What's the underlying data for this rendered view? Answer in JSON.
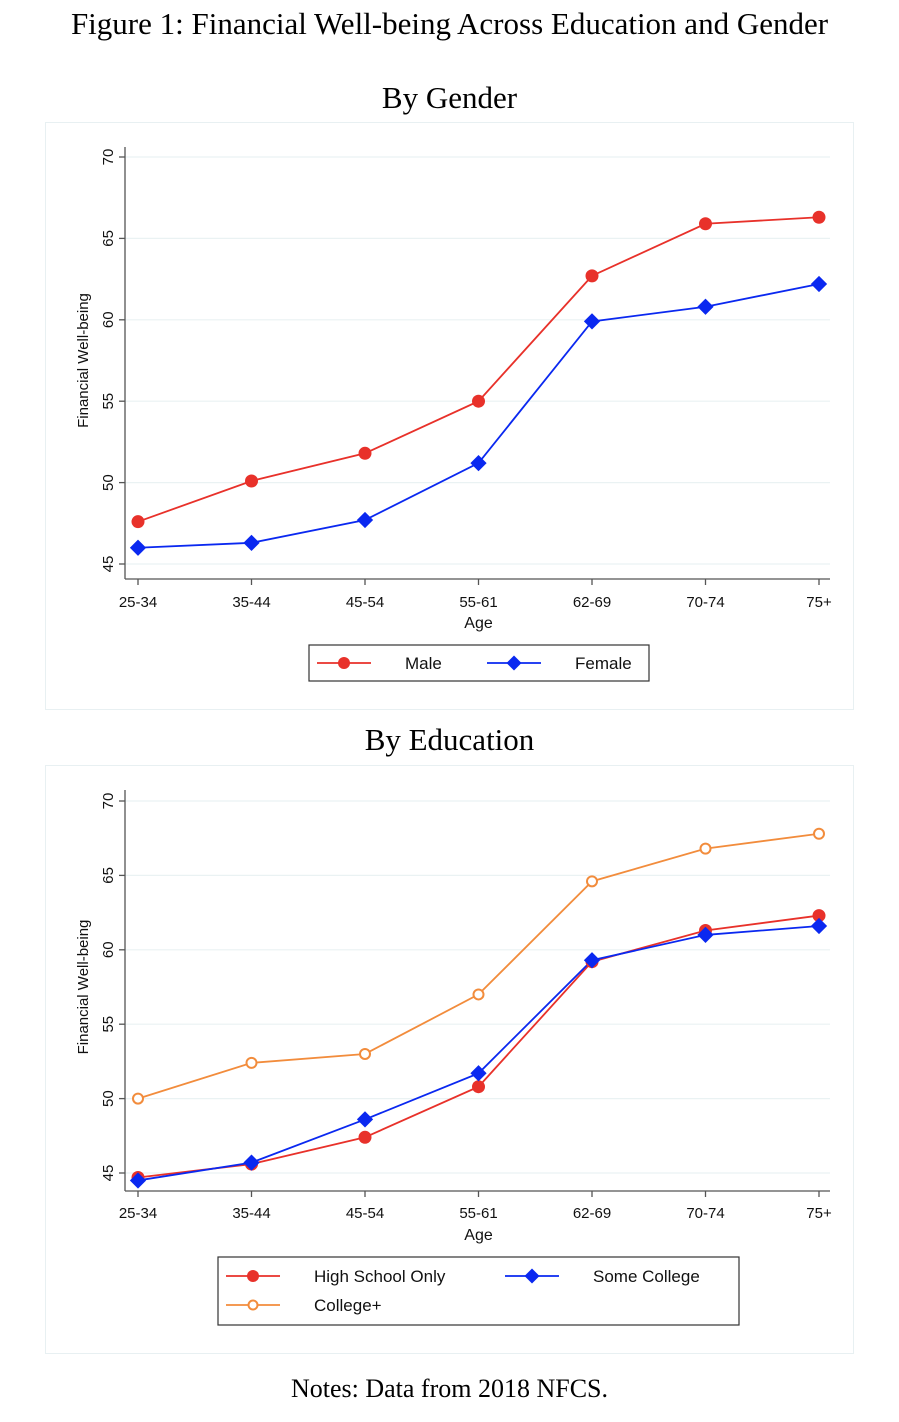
{
  "figure_title": "Figure 1: Financial Well-being Across Education and Gender",
  "notes": "Notes: Data from 2018 NFCS.",
  "chart_data": [
    {
      "type": "line",
      "title": "By Gender",
      "xlabel": "Age",
      "ylabel": "Financial Well-being",
      "categories": [
        "25-34",
        "35-44",
        "45-54",
        "55-61",
        "62-69",
        "70-74",
        "75+"
      ],
      "ylim": [
        45,
        70
      ],
      "yticks": [
        45,
        50,
        55,
        60,
        65,
        70
      ],
      "grid": true,
      "legend_position": "bottom",
      "series": [
        {
          "name": "Male",
          "color": "#e8312a",
          "marker": "circle-filled",
          "values": [
            47.6,
            50.1,
            51.8,
            55.0,
            62.7,
            65.9,
            66.3
          ]
        },
        {
          "name": "Female",
          "color": "#0a28f0",
          "marker": "diamond-filled",
          "values": [
            46.0,
            46.3,
            47.7,
            51.2,
            59.9,
            60.8,
            62.2
          ]
        }
      ]
    },
    {
      "type": "line",
      "title": "By Education",
      "xlabel": "Age",
      "ylabel": "Financial Well-being",
      "categories": [
        "25-34",
        "35-44",
        "45-54",
        "55-61",
        "62-69",
        "70-74",
        "75+"
      ],
      "ylim": [
        45,
        70
      ],
      "yticks": [
        45,
        50,
        55,
        60,
        65,
        70
      ],
      "grid": true,
      "legend_position": "bottom",
      "series": [
        {
          "name": "High School Only",
          "color": "#e8312a",
          "marker": "circle-filled",
          "values": [
            44.7,
            45.6,
            47.4,
            50.8,
            59.2,
            61.3,
            62.3
          ]
        },
        {
          "name": "Some College",
          "color": "#0a28f0",
          "marker": "diamond-filled",
          "values": [
            44.5,
            45.7,
            48.6,
            51.7,
            59.3,
            61.0,
            61.6
          ]
        },
        {
          "name": "College+",
          "color": "#f28c3c",
          "marker": "circle-hollow",
          "values": [
            50.0,
            52.4,
            53.0,
            57.0,
            64.6,
            66.8,
            67.8
          ]
        }
      ]
    }
  ]
}
